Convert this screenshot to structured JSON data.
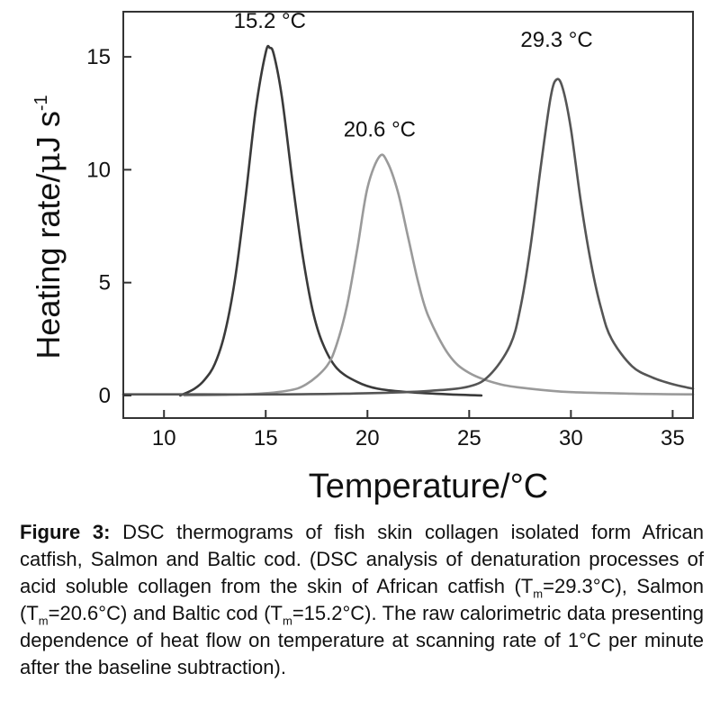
{
  "chart_data": {
    "type": "line",
    "xlabel": "Temperature/°C",
    "ylabel_main": "Heating rate/",
    "ylabel_mu": "μ",
    "ylabel_tail": "J s",
    "ylabel_sup": "-1",
    "xlim": [
      8,
      36
    ],
    "ylim": [
      -1,
      17
    ],
    "xticks": [
      10,
      15,
      20,
      25,
      30,
      35
    ],
    "yticks": [
      0,
      5,
      10,
      15
    ],
    "grid": false,
    "legend": "none",
    "series": [
      {
        "peak_label": "15.2 °C",
        "color": "#3a3a3a",
        "x": [
          10.8,
          11.5,
          12.0,
          12.5,
          13.0,
          13.5,
          14.0,
          14.5,
          15.0,
          15.2,
          15.4,
          15.8,
          16.3,
          16.8,
          17.3,
          17.8,
          18.5,
          19.5,
          20.5,
          22.0,
          24.0,
          25.6
        ],
        "y": [
          0.0,
          0.3,
          0.7,
          1.4,
          2.8,
          5.2,
          8.7,
          12.6,
          15.2,
          15.4,
          15.1,
          13.2,
          9.6,
          6.3,
          3.8,
          2.3,
          1.2,
          0.6,
          0.3,
          0.15,
          0.05,
          0.0
        ]
      },
      {
        "peak_label": "20.6 °C",
        "color": "#9a9a9a",
        "x": [
          11.0,
          14.0,
          16.0,
          17.0,
          18.0,
          18.5,
          19.0,
          19.5,
          20.0,
          20.6,
          21.0,
          21.5,
          22.0,
          22.5,
          23.0,
          24.0,
          25.0,
          26.5,
          28.0,
          30.0,
          33.0,
          36.0
        ],
        "y": [
          0.0,
          0.05,
          0.2,
          0.5,
          1.3,
          2.3,
          4.0,
          6.5,
          9.2,
          10.6,
          10.3,
          9.0,
          7.0,
          5.0,
          3.5,
          1.8,
          1.0,
          0.5,
          0.3,
          0.15,
          0.08,
          0.05
        ]
      },
      {
        "peak_label": "29.3 °C",
        "color": "#555555",
        "x": [
          8.0,
          12.0,
          16.0,
          20.0,
          23.0,
          25.0,
          26.0,
          27.0,
          27.5,
          28.0,
          28.5,
          29.0,
          29.3,
          29.6,
          30.0,
          30.5,
          31.0,
          31.5,
          32.0,
          33.0,
          34.0,
          35.0,
          36.0
        ],
        "y": [
          0.05,
          0.05,
          0.05,
          0.1,
          0.2,
          0.4,
          0.9,
          2.2,
          3.8,
          6.5,
          10.0,
          13.2,
          14.0,
          13.6,
          11.8,
          8.5,
          5.8,
          3.8,
          2.5,
          1.3,
          0.8,
          0.5,
          0.3
        ]
      }
    ]
  },
  "caption": {
    "figure_label": "Figure 3:",
    "part1": " DSC thermograms of fish skin collagen isolated form African catfish, Salmon and Baltic cod. (DSC analysis of denaturation processes of acid soluble collagen from the skin of African catfish (T",
    "sub1": "m",
    "part2": "=29.3°C), Salmon (T",
    "sub2": "m",
    "part3": "=20.6°C) and Baltic cod (T",
    "sub3": "m",
    "part4": "=15.2°C). The raw calorimetric data presenting dependence of heat flow on temperature at scanning rate of 1°C per minute after the baseline subtraction)."
  }
}
